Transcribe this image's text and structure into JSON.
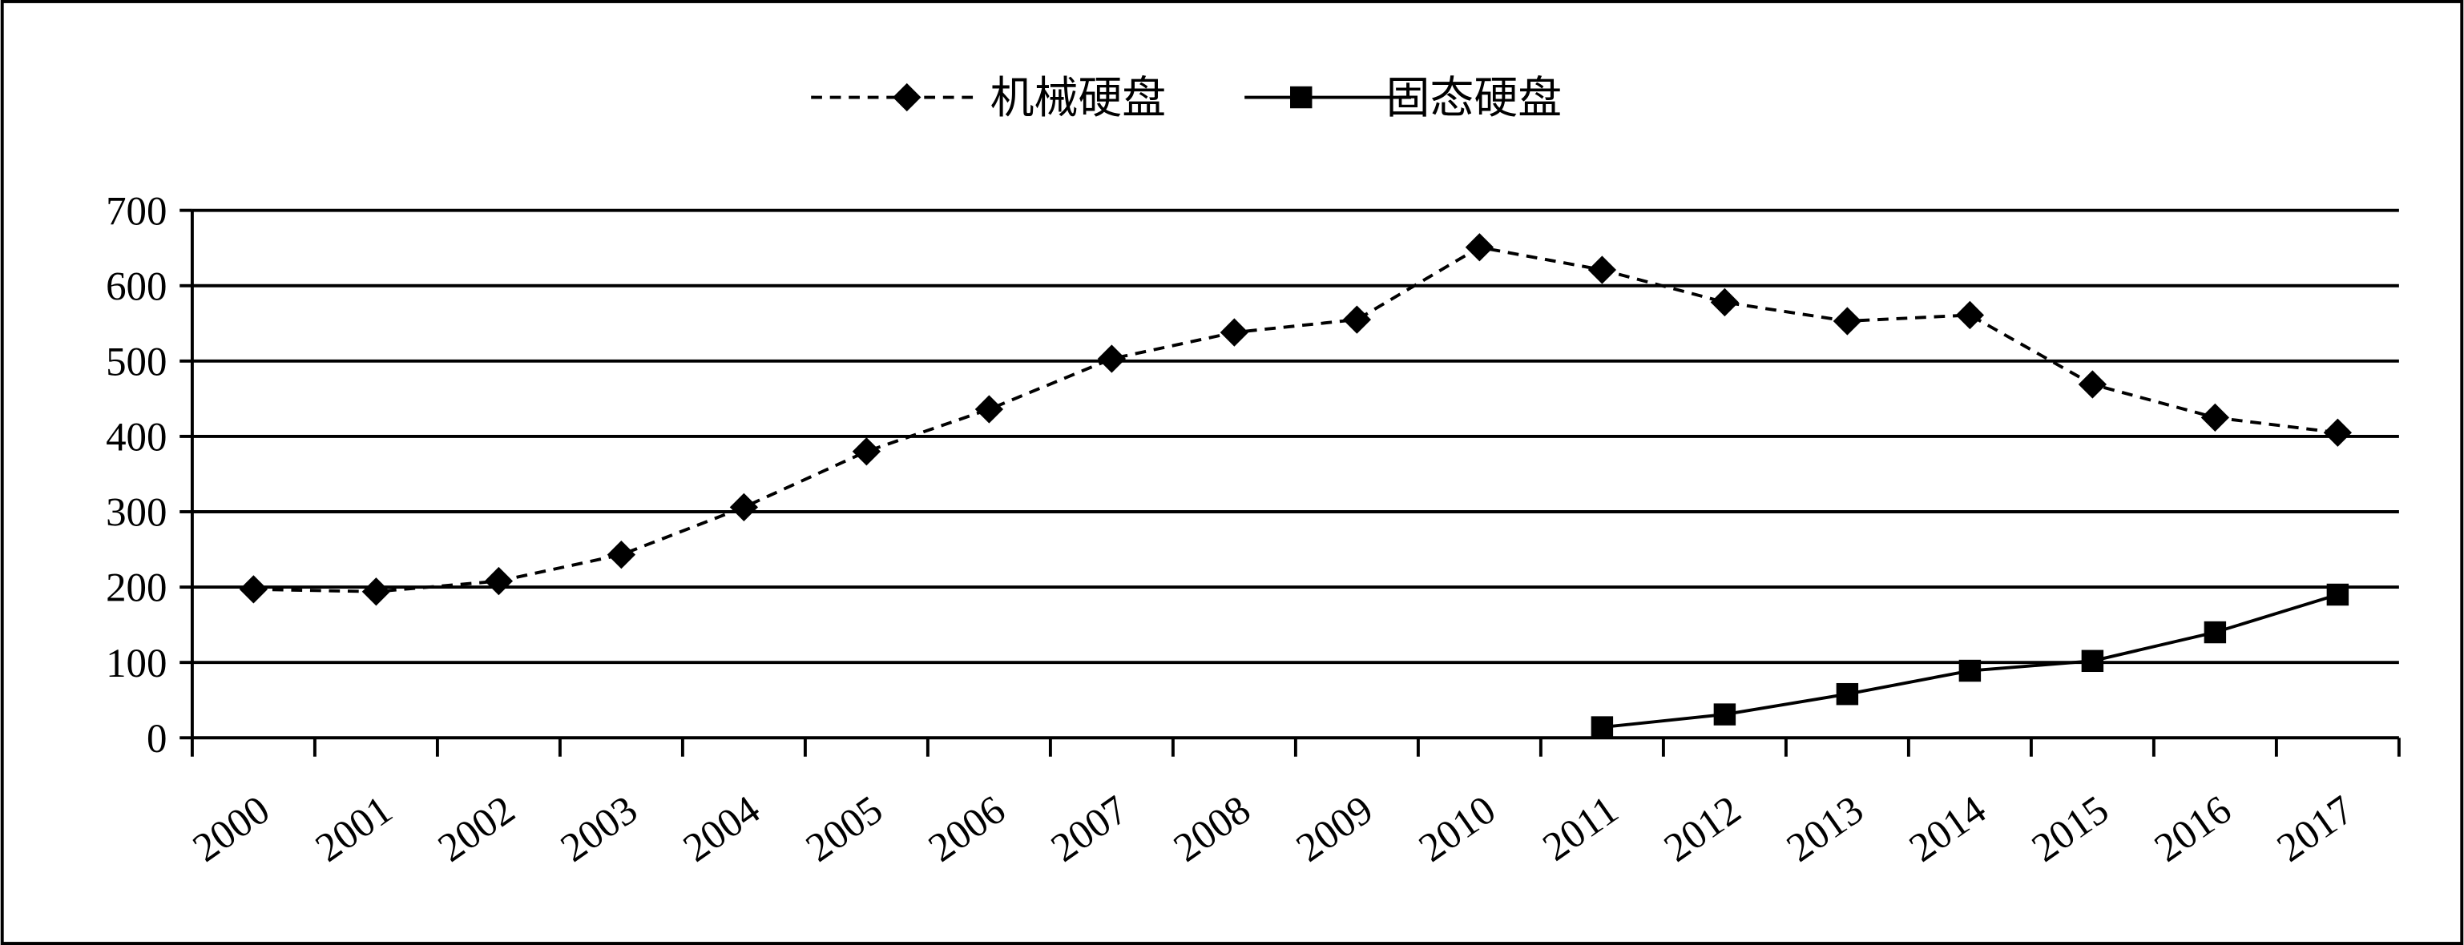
{
  "chart_data": {
    "type": "line",
    "categories": [
      "2000",
      "2001",
      "2002",
      "2003",
      "2004",
      "2005",
      "2006",
      "2007",
      "2008",
      "2009",
      "2010",
      "2011",
      "2012",
      "2013",
      "2014",
      "2015",
      "2016",
      "2017"
    ],
    "series": [
      {
        "name": "机械硬盘",
        "color": "#000000",
        "dash": true,
        "marker": "diamond",
        "values": [
          197,
          194,
          208,
          243,
          306,
          380,
          436,
          503,
          538,
          555,
          651,
          621,
          578,
          553,
          561,
          469,
          425,
          405
        ]
      },
      {
        "name": "固态硬盘",
        "color": "#000000",
        "dash": false,
        "marker": "square",
        "values": [
          null,
          null,
          null,
          null,
          null,
          null,
          null,
          null,
          null,
          null,
          null,
          14,
          31,
          58,
          89,
          102,
          140,
          190
        ]
      }
    ],
    "ylim": [
      0,
      700
    ],
    "yticks": [
      0,
      100,
      200,
      300,
      400,
      500,
      600,
      700
    ],
    "grid": true,
    "legend": "top"
  }
}
